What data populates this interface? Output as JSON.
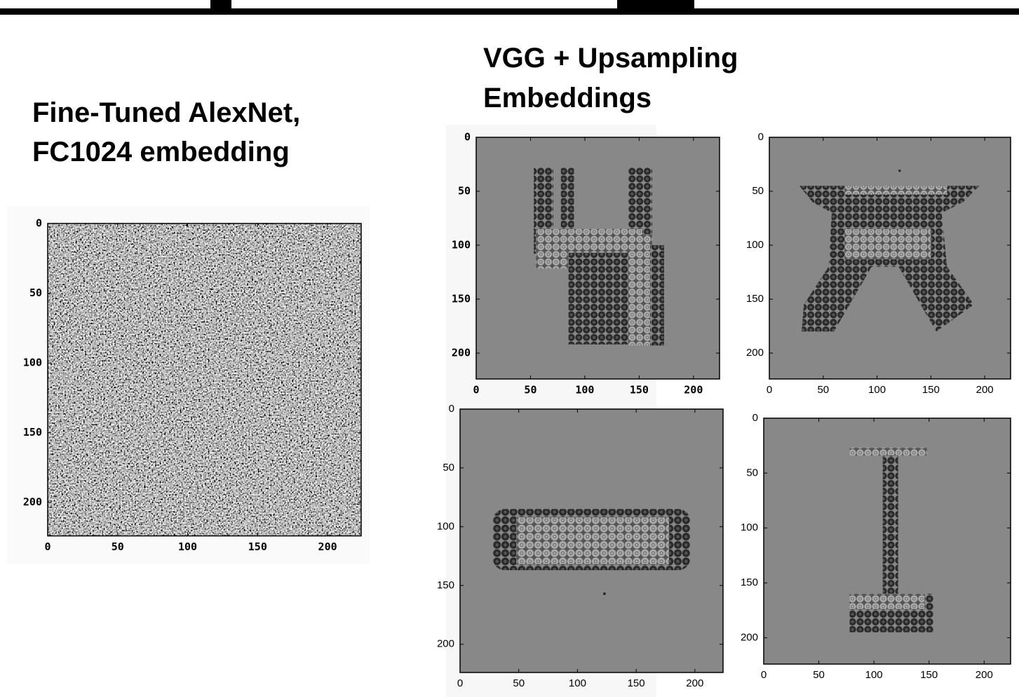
{
  "slide": {
    "left_heading": [
      "Fine-Tuned AlexNet,",
      "FC1024 embedding"
    ],
    "right_heading": [
      "VGG + Upsampling",
      "Embeddings"
    ],
    "plots": [
      {
        "xlim": [
          0,
          224
        ],
        "ylim": [
          0,
          224
        ],
        "xticks": [
          0,
          50,
          100,
          150,
          200
        ],
        "yticks": [
          0,
          50,
          100,
          150,
          200
        ]
      },
      {
        "xlim": [
          0,
          224
        ],
        "ylim": [
          0,
          224
        ],
        "xticks": [
          0,
          50,
          100,
          150,
          200
        ],
        "yticks": [
          0,
          50,
          100,
          150,
          200
        ]
      },
      {
        "xlim": [
          0,
          224
        ],
        "ylim": [
          0,
          224
        ],
        "xticks": [
          0,
          50,
          100,
          150,
          200
        ],
        "yticks": [
          0,
          50,
          100,
          150,
          200
        ]
      },
      {
        "xlim": [
          0,
          224
        ],
        "ylim": [
          0,
          224
        ],
        "xticks": [
          0,
          50,
          100,
          150,
          200
        ],
        "yticks": [
          0,
          50,
          100,
          150,
          200
        ]
      },
      {
        "xlim": [
          0,
          224
        ],
        "ylim": [
          0,
          224
        ],
        "xticks": [
          0,
          50,
          100,
          150,
          200
        ],
        "yticks": [
          0,
          50,
          100,
          150,
          200
        ]
      }
    ]
  }
}
